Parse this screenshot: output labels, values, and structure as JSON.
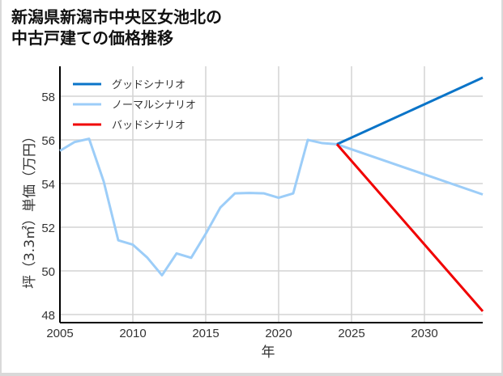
{
  "title_line1": "新潟県新潟市中央区女池北の",
  "title_line2": "中古戸建ての価格推移",
  "chart_data": {
    "type": "line",
    "title": "新潟県新潟市中央区女池北の中古戸建ての価格推移",
    "xlabel": "年",
    "ylabel": "坪（3.3㎡）単価（万円）",
    "xlim": [
      2005,
      2034
    ],
    "ylim": [
      47.6,
      59.5
    ],
    "xticks": [
      2005,
      2010,
      2015,
      2020,
      2025,
      2030
    ],
    "yticks": [
      48,
      50,
      52,
      54,
      56,
      58
    ],
    "grid": true,
    "legend_position": "upper left",
    "series": [
      {
        "name": "グッドシナリオ",
        "color": "#0a74c8",
        "x": [
          2024,
          2034
        ],
        "values": [
          55.8,
          58.85
        ]
      },
      {
        "name": "ノーマルシナリオ",
        "color": "#9ccdf8",
        "x": [
          2005,
          2006,
          2007,
          2008,
          2009,
          2010,
          2011,
          2012,
          2013,
          2014,
          2015,
          2016,
          2017,
          2018,
          2019,
          2020,
          2021,
          2022,
          2023,
          2024,
          2034
        ],
        "values": [
          55.5,
          55.9,
          56.05,
          54.1,
          51.4,
          51.2,
          50.6,
          49.8,
          50.8,
          50.6,
          51.7,
          52.9,
          53.55,
          53.57,
          53.55,
          53.35,
          53.55,
          56.0,
          55.85,
          55.8,
          53.5
        ]
      },
      {
        "name": "バッドシナリオ",
        "color": "#f00000",
        "x": [
          2024,
          2034
        ],
        "values": [
          55.8,
          48.15
        ]
      }
    ]
  }
}
